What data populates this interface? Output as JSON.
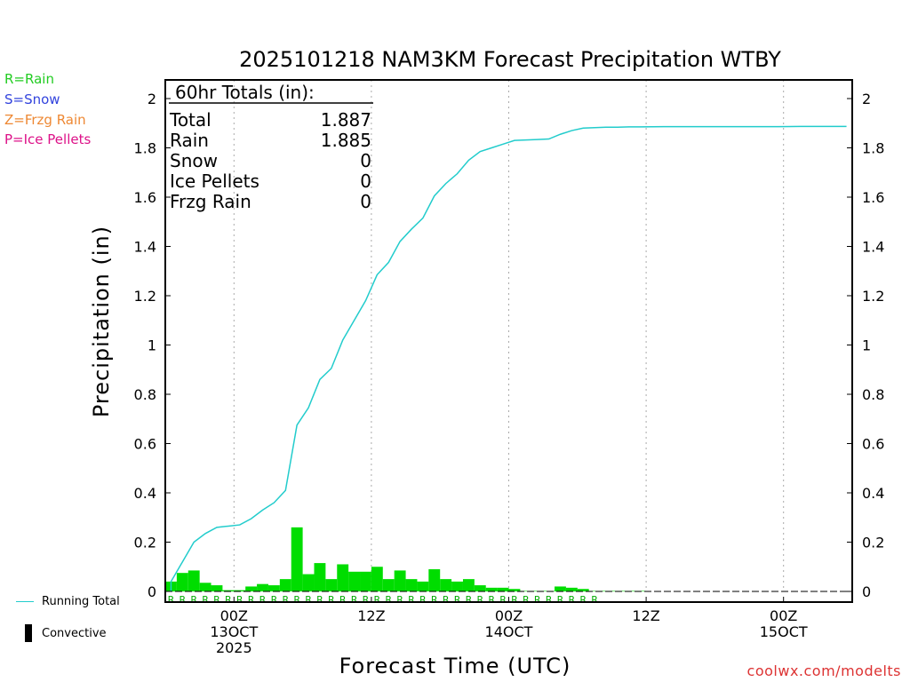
{
  "chart_data": {
    "type": "bar+line",
    "title": "2025101218 NAM3KM Forecast Precipitation WTBY",
    "xlabel": "Forecast Time (UTC)",
    "ylabel": "Precipitation (in)",
    "ylim": [
      0,
      2.1
    ],
    "yticks": [
      "0",
      "0.2",
      "0.4",
      "0.6",
      "0.8",
      "1",
      "1.2",
      "1.4",
      "1.6",
      "1.8",
      "2"
    ],
    "x_hours_range": [
      -6,
      54
    ],
    "x_ticks": [
      {
        "hour": 0,
        "lines": [
          "00Z",
          "13OCT",
          "2025"
        ]
      },
      {
        "hour": 12,
        "lines": [
          "12Z"
        ]
      },
      {
        "hour": 24,
        "lines": [
          "00Z",
          "14OCT"
        ]
      },
      {
        "hour": 36,
        "lines": [
          "12Z"
        ]
      },
      {
        "hour": 48,
        "lines": [
          "00Z",
          "15OCT"
        ]
      }
    ],
    "bars": {
      "name": "Hourly precipitation",
      "hours": [
        -5,
        -4,
        -3,
        -2,
        -1,
        0,
        1,
        2,
        3,
        4,
        5,
        6,
        7,
        8,
        9,
        10,
        11,
        12,
        13,
        14,
        15,
        16,
        17,
        18,
        19,
        20,
        21,
        22,
        23,
        24,
        25,
        26,
        27,
        28,
        29,
        30,
        31,
        32,
        33,
        34,
        35,
        36,
        37,
        38,
        39,
        40,
        41,
        42,
        43,
        44,
        45,
        46,
        47,
        48,
        49,
        50,
        51,
        52,
        53,
        54
      ],
      "values": [
        0.04,
        0.075,
        0.085,
        0.035,
        0.025,
        0.005,
        0.005,
        0.02,
        0.03,
        0.025,
        0.05,
        0.26,
        0.07,
        0.115,
        0.05,
        0.11,
        0.08,
        0.08,
        0.1,
        0.05,
        0.085,
        0.05,
        0.04,
        0.09,
        0.05,
        0.04,
        0.05,
        0.025,
        0.015,
        0.015,
        0.01,
        0.002,
        0.002,
        0.002,
        0.02,
        0.015,
        0.01,
        0.002,
        0.002,
        0.002,
        0.002,
        0.002,
        0.0,
        0.0,
        0.0,
        0.0,
        0.0,
        0.0,
        0.0,
        0.0,
        0.0,
        0.0,
        0.0,
        0.0,
        0.0,
        0.0,
        0.0,
        0.0,
        0.0,
        0.0
      ],
      "color": "#00dd00"
    },
    "running_total": {
      "name": "Running Total",
      "hours": [
        -5,
        -4,
        -3,
        -2,
        -1,
        0,
        1,
        2,
        3,
        4,
        5,
        6,
        7,
        8,
        9,
        10,
        11,
        12,
        13,
        14,
        15,
        16,
        17,
        18,
        19,
        20,
        21,
        22,
        23,
        24,
        25,
        26,
        27,
        28,
        29,
        30,
        31,
        32,
        33,
        34,
        35,
        36,
        38,
        40,
        42,
        44,
        46,
        48,
        50,
        52,
        54
      ],
      "values": [
        0.04,
        0.12,
        0.2,
        0.235,
        0.26,
        0.265,
        0.27,
        0.295,
        0.33,
        0.36,
        0.41,
        0.675,
        0.745,
        0.86,
        0.905,
        1.02,
        1.1,
        1.18,
        1.285,
        1.335,
        1.42,
        1.47,
        1.515,
        1.605,
        1.655,
        1.695,
        1.75,
        1.785,
        1.8,
        1.815,
        1.83,
        1.832,
        1.834,
        1.836,
        1.855,
        1.87,
        1.88,
        1.882,
        1.884,
        1.884,
        1.885,
        1.885,
        1.886,
        1.886,
        1.886,
        1.886,
        1.886,
        1.886,
        1.887,
        1.887,
        1.887
      ],
      "color": "#22cccc"
    },
    "ptype_row": {
      "hours_from": -5,
      "hours_to": 32,
      "letter": "R",
      "color": "#00aa00"
    }
  },
  "totals_box": {
    "header": "60hr Totals (in):",
    "rows": [
      {
        "label": "Total",
        "value": "1.887"
      },
      {
        "label": "Rain",
        "value": "1.885"
      },
      {
        "label": "Snow",
        "value": "0"
      },
      {
        "label": "Ice Pellets",
        "value": "0"
      },
      {
        "label": "Frzg Rain",
        "value": "0"
      }
    ]
  },
  "ptype_legend": [
    {
      "text": "R=Rain",
      "color": "#22cc22"
    },
    {
      "text": "S=Snow",
      "color": "#3344dd"
    },
    {
      "text": "Z=Frzg Rain",
      "color": "#ee8833"
    },
    {
      "text": "P=Ice Pellets",
      "color": "#dd1188"
    }
  ],
  "bottom_legend": {
    "running_total": "Running Total",
    "convective": "Convective"
  },
  "credit": "coolwx.com/modelts"
}
